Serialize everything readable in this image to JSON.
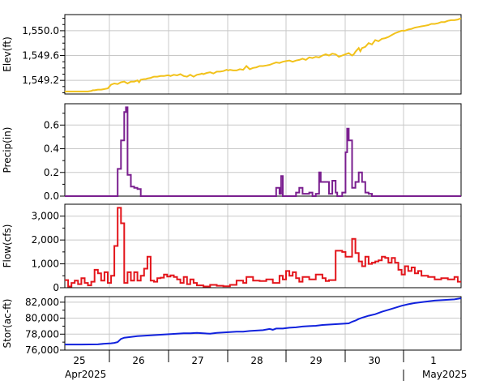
{
  "chart_data": [
    {
      "type": "line",
      "ylabel": "Elev(ft)",
      "ytick_labels": [
        "1,549.2",
        "1,549.6",
        "1,550.0"
      ],
      "ylim": [
        1548.98,
        1550.26
      ],
      "ytick_values": [
        1549.2,
        1549.6,
        1550.0
      ],
      "ymajor": [
        1549.2,
        1549.6,
        1550.0
      ],
      "yminor": [
        1549.0,
        1549.1,
        1549.3,
        1549.4,
        1549.5,
        1549.7,
        1549.8,
        1549.9,
        1550.1,
        1550.2
      ],
      "color": "#f2c21b",
      "step": false,
      "x": [
        0,
        1,
        2,
        3,
        3.5,
        4,
        4.5,
        5.5,
        6,
        6.5,
        7,
        8,
        8.5,
        9,
        10,
        11,
        12,
        13,
        14,
        15,
        16,
        17,
        18,
        19,
        20,
        21,
        22,
        22.5,
        23,
        24,
        24.5,
        25,
        26,
        26.5,
        27,
        28,
        29,
        30,
        31,
        31.5,
        32,
        33,
        34,
        35,
        36,
        37,
        38,
        39,
        40,
        41,
        41.5,
        42,
        43,
        44,
        45,
        46,
        47,
        48,
        49,
        49.5,
        50,
        51,
        52,
        53,
        54,
        55,
        56,
        57,
        58,
        59,
        60,
        61,
        62,
        63,
        64,
        65,
        66,
        67,
        68,
        69,
        70,
        71,
        72,
        73,
        74,
        75,
        76,
        77,
        78,
        79,
        80,
        81,
        82,
        83,
        84,
        85,
        86,
        87,
        87.5,
        88,
        89,
        89.5,
        90,
        91,
        92,
        93,
        94,
        95,
        96,
        97,
        98,
        99,
        100,
        101,
        102,
        103,
        104,
        105,
        106,
        107,
        108,
        109,
        110,
        111,
        112,
        113,
        114,
        115,
        116,
        117,
        118,
        119,
        120
      ],
      "y": [
        1549.02,
        1549.02,
        1549.02,
        1549.02,
        1549.02,
        1549.02,
        1549.02,
        1549.02,
        1549.02,
        1549.02,
        1549.02,
        1549.03,
        1549.04,
        1549.04,
        1549.05,
        1549.05,
        1549.06,
        1549.07,
        1549.13,
        1549.15,
        1549.14,
        1549.17,
        1549.18,
        1549.15,
        1549.18,
        1549.18,
        1549.2,
        1549.17,
        1549.21,
        1549.22,
        1549.22,
        1549.23,
        1549.24,
        1549.25,
        1549.26,
        1549.26,
        1549.27,
        1549.27,
        1549.28,
        1549.28,
        1549.27,
        1549.29,
        1549.28,
        1549.3,
        1549.27,
        1549.26,
        1549.29,
        1549.26,
        1549.29,
        1549.3,
        1549.31,
        1549.3,
        1549.32,
        1549.33,
        1549.31,
        1549.34,
        1549.34,
        1549.35,
        1549.37,
        1549.36,
        1549.37,
        1549.36,
        1549.36,
        1549.38,
        1549.37,
        1549.43,
        1549.38,
        1549.4,
        1549.41,
        1549.43,
        1549.43,
        1549.44,
        1549.45,
        1549.47,
        1549.49,
        1549.48,
        1549.5,
        1549.51,
        1549.52,
        1549.5,
        1549.52,
        1549.53,
        1549.55,
        1549.53,
        1549.57,
        1549.56,
        1549.58,
        1549.57,
        1549.6,
        1549.62,
        1549.6,
        1549.63,
        1549.62,
        1549.58,
        1549.6,
        1549.62,
        1549.64,
        1549.6,
        1549.62,
        1549.66,
        1549.72,
        1549.67,
        1549.72,
        1549.74,
        1549.8,
        1549.78,
        1549.85,
        1549.83,
        1549.87,
        1549.88,
        1549.9,
        1549.93,
        1549.96,
        1549.98,
        1550.0,
        1550.0,
        1550.02,
        1550.03,
        1550.05,
        1550.06,
        1550.07,
        1550.08,
        1550.09,
        1550.11,
        1550.11,
        1550.12,
        1550.14,
        1550.14,
        1550.16,
        1550.17,
        1550.17,
        1550.18,
        1550.2
      ]
    },
    {
      "type": "line",
      "ylabel": "Precip(in)",
      "ytick_labels": [
        "0.0",
        "0.2",
        "0.4",
        "0.6"
      ],
      "ylim": [
        0,
        0.78
      ],
      "ytick_values": [
        0,
        0.2,
        0.4,
        0.6
      ],
      "ymajor": [
        0,
        0.2,
        0.4,
        0.6
      ],
      "yminor": [
        0.1,
        0.3,
        0.5,
        0.7
      ],
      "color": "#7a1f8f",
      "step": true,
      "x": [
        0,
        16,
        16,
        17,
        17,
        18,
        18,
        18.5,
        18.5,
        19,
        19,
        20,
        20,
        21,
        21,
        22,
        22,
        23,
        23,
        64,
        64,
        65,
        65,
        65.5,
        65.5,
        66,
        66,
        66.5,
        66.5,
        70,
        70,
        71,
        71,
        72,
        72,
        74,
        74,
        75,
        75,
        76,
        76,
        77,
        77,
        77.5,
        77.5,
        80,
        80,
        81,
        81,
        82,
        82,
        82.5,
        82.5,
        84,
        84,
        85,
        85,
        85.5,
        85.5,
        86,
        86,
        87,
        87,
        88,
        88,
        89,
        89,
        90,
        90,
        91,
        91,
        92,
        92,
        93,
        93,
        120
      ],
      "y": [
        0,
        0,
        0.23,
        0.23,
        0.47,
        0.47,
        0.71,
        0.71,
        0.75,
        0.75,
        0.18,
        0.18,
        0.08,
        0.08,
        0.07,
        0.07,
        0.06,
        0.06,
        0,
        0,
        0.07,
        0.07,
        0.02,
        0.02,
        0.17,
        0.17,
        0.0,
        0.0,
        0,
        0,
        0.03,
        0.03,
        0.07,
        0.07,
        0.02,
        0.02,
        0.03,
        0.03,
        0.0,
        0.0,
        0.02,
        0.02,
        0.2,
        0.2,
        0.12,
        0.12,
        0.02,
        0.02,
        0.13,
        0.13,
        0.03,
        0.03,
        0.0,
        0.0,
        0.03,
        0.03,
        0.37,
        0.37,
        0.57,
        0.57,
        0.47,
        0.47,
        0.07,
        0.07,
        0.12,
        0.12,
        0.2,
        0.2,
        0.12,
        0.12,
        0.03,
        0.03,
        0.02,
        0.02,
        0,
        0
      ]
    },
    {
      "type": "line",
      "ylabel": "Flow(cfs)",
      "ytick_labels": [
        "0",
        "1,000",
        "2,000",
        "3,000"
      ],
      "ylim": [
        0,
        3500
      ],
      "ytick_values": [
        0,
        1000,
        2000,
        3000
      ],
      "ymajor": [
        0,
        1000,
        2000,
        3000
      ],
      "yminor": [
        500,
        1500,
        2500
      ],
      "color": "#e3151b",
      "step": true,
      "x": [
        0,
        1,
        1,
        2,
        2,
        3,
        3,
        4,
        4,
        5,
        5,
        6,
        6,
        7,
        7,
        8,
        8,
        9,
        9,
        10,
        10,
        11,
        11,
        12,
        12,
        13,
        13,
        14,
        14,
        15,
        15,
        16,
        16,
        17,
        17,
        18,
        18,
        19,
        19,
        20,
        20,
        21,
        21,
        22,
        22,
        23,
        23,
        24,
        24,
        25,
        25,
        26,
        26,
        27,
        27,
        28,
        28,
        29,
        29,
        30,
        30,
        31,
        31,
        32,
        32,
        33,
        33,
        34,
        34,
        35,
        35,
        36,
        36,
        37,
        37,
        38,
        38,
        39,
        39,
        40,
        40,
        42,
        42,
        44,
        44,
        46,
        46,
        48,
        48,
        50,
        50,
        52,
        52,
        54,
        54,
        55,
        55,
        57,
        57,
        59,
        59,
        61,
        61,
        63,
        63,
        65,
        65,
        66,
        66,
        67,
        67,
        68,
        68,
        69,
        69,
        70,
        70,
        71,
        71,
        72,
        72,
        74,
        74,
        76,
        76,
        78,
        78,
        79,
        79,
        80,
        80,
        82,
        82,
        84,
        84,
        85,
        85,
        87,
        87,
        88,
        88,
        89,
        89,
        90,
        90,
        91,
        91,
        92,
        92,
        93,
        93,
        94,
        94,
        95,
        95,
        96,
        96,
        97,
        97,
        98,
        98,
        99,
        99,
        100,
        100,
        101,
        101,
        102,
        102,
        103,
        103,
        104,
        104,
        105,
        105,
        106,
        106,
        107,
        107,
        108,
        108,
        110,
        110,
        112,
        112,
        114,
        114,
        116,
        116,
        118,
        118,
        119,
        119,
        120
      ],
      "y": [
        320,
        320,
        50,
        50,
        200,
        200,
        300,
        300,
        150,
        150,
        400,
        400,
        200,
        200,
        100,
        100,
        250,
        250,
        750,
        750,
        600,
        600,
        300,
        300,
        650,
        650,
        200,
        200,
        500,
        500,
        1750,
        1750,
        3350,
        3350,
        2700,
        2700,
        200,
        200,
        650,
        650,
        300,
        300,
        650,
        650,
        300,
        300,
        500,
        500,
        800,
        800,
        1300,
        1300,
        300,
        300,
        250,
        250,
        400,
        400,
        420,
        420,
        550,
        550,
        470,
        470,
        520,
        520,
        450,
        450,
        350,
        350,
        200,
        200,
        450,
        450,
        150,
        150,
        350,
        350,
        200,
        200,
        100,
        100,
        50,
        50,
        120,
        120,
        80,
        80,
        60,
        60,
        120,
        120,
        300,
        300,
        200,
        200,
        450,
        450,
        300,
        300,
        280,
        280,
        350,
        350,
        200,
        200,
        500,
        500,
        350,
        350,
        700,
        700,
        500,
        500,
        650,
        650,
        400,
        400,
        250,
        250,
        450,
        450,
        350,
        350,
        550,
        550,
        400,
        400,
        280,
        280,
        320,
        320,
        1550,
        1550,
        1500,
        1500,
        1300,
        1300,
        2050,
        2050,
        1450,
        1450,
        1100,
        1100,
        900,
        900,
        1300,
        1300,
        1000,
        1000,
        1050,
        1050,
        1100,
        1100,
        1150,
        1150,
        1300,
        1300,
        1250,
        1250,
        1050,
        1050,
        1250,
        1250,
        1050,
        1050,
        750,
        750,
        550,
        550,
        900,
        900,
        700,
        700,
        850,
        850,
        600,
        600,
        700,
        700,
        500,
        500,
        450,
        450,
        350,
        350,
        400,
        400,
        350,
        350,
        450,
        450,
        250,
        250
      ]
    },
    {
      "type": "line",
      "ylabel": "Stor(ac-ft)",
      "ytick_labels": [
        "76,000",
        "78,000",
        "80,000",
        "82,000"
      ],
      "ylim": [
        76000,
        82700
      ],
      "ytick_values": [
        76000,
        78000,
        80000,
        82000
      ],
      "ymajor": [
        76000,
        78000,
        80000,
        82000
      ],
      "yminor": [
        77000,
        79000,
        81000
      ],
      "color": "#1122dd",
      "step": false,
      "x": [
        0,
        5,
        10,
        12,
        14,
        15,
        16,
        17,
        18,
        19,
        20,
        22,
        24,
        26,
        28,
        30,
        32,
        34,
        36,
        38,
        40,
        42,
        44,
        46,
        48,
        50,
        52,
        54,
        56,
        58,
        60,
        62,
        63,
        64,
        66,
        68,
        70,
        72,
        74,
        76,
        78,
        80,
        82,
        84,
        86,
        87,
        88,
        89,
        90,
        92,
        94,
        96,
        98,
        100,
        102,
        104,
        106,
        108,
        110,
        112,
        114,
        116,
        118,
        120
      ],
      "y": [
        76700,
        76700,
        76720,
        76800,
        76850,
        76900,
        77000,
        77400,
        77550,
        77600,
        77650,
        77750,
        77800,
        77850,
        77900,
        77950,
        78000,
        78050,
        78100,
        78100,
        78150,
        78100,
        78050,
        78150,
        78200,
        78250,
        78300,
        78300,
        78400,
        78450,
        78500,
        78650,
        78550,
        78700,
        78700,
        78800,
        78850,
        78950,
        79000,
        79050,
        79150,
        79200,
        79250,
        79300,
        79350,
        79550,
        79700,
        79900,
        80050,
        80300,
        80500,
        80800,
        81050,
        81300,
        81550,
        81750,
        81900,
        82000,
        82100,
        82200,
        82250,
        82300,
        82350,
        82500
      ]
    }
  ],
  "xaxis": {
    "day_labels": [
      "25",
      "26",
      "27",
      "28",
      "29",
      "30",
      "1"
    ],
    "month_labels": [
      "Apr2025",
      "May2025"
    ]
  }
}
